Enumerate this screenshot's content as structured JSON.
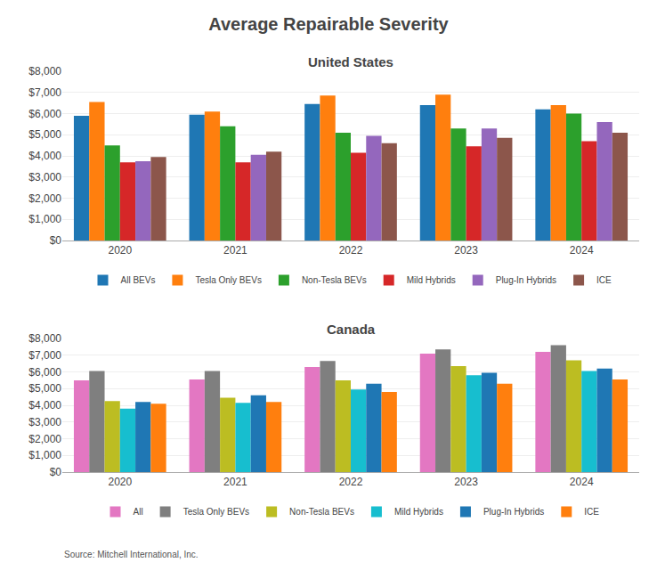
{
  "title": "Average Repairable Severity",
  "annotations": [
    "Source: Mitchell International, Inc."
  ],
  "chart_data": [
    {
      "type": "bar",
      "title": "United States",
      "categories": [
        "2020",
        "2021",
        "2022",
        "2023",
        "2024"
      ],
      "series": [
        {
          "name": "All BEVs",
          "values": [
            5900,
            5950,
            6450,
            6400,
            6200
          ]
        },
        {
          "name": "Tesla Only BEVs",
          "values": [
            6550,
            6100,
            6850,
            6900,
            6400
          ]
        },
        {
          "name": "Non-Tesla BEVs",
          "values": [
            4500,
            5400,
            5100,
            5300,
            6000
          ]
        },
        {
          "name": "Mild Hybrids",
          "values": [
            3700,
            3700,
            4150,
            4450,
            4700
          ]
        },
        {
          "name": "Plug-In Hybrids",
          "values": [
            3750,
            4050,
            4950,
            5300,
            5600
          ]
        },
        {
          "name": "ICE",
          "values": [
            3950,
            4200,
            4600,
            4850,
            5100
          ]
        }
      ],
      "ylim": [
        0,
        8000
      ],
      "yticks": [
        {
          "value": 0,
          "label": "$0"
        },
        {
          "value": 1000,
          "label": "$1,000"
        },
        {
          "value": 2000,
          "label": "$2,000"
        },
        {
          "value": 3000,
          "label": "$3,000"
        },
        {
          "value": 4000,
          "label": "$4,000"
        },
        {
          "value": 5000,
          "label": "$5,000"
        },
        {
          "value": 6000,
          "label": "$6,000"
        },
        {
          "value": 7000,
          "label": "$7,000"
        },
        {
          "value": 8000,
          "label": "$8,000"
        }
      ],
      "grid": true,
      "legend": "bottom"
    },
    {
      "type": "bar",
      "title": "Canada",
      "categories": [
        "2020",
        "2021",
        "2022",
        "2023",
        "2024"
      ],
      "series": [
        {
          "name": "All",
          "values": [
            5500,
            5550,
            6300,
            7100,
            7200
          ]
        },
        {
          "name": "Tesla Only BEVs",
          "values": [
            6050,
            6050,
            6650,
            7350,
            7600
          ]
        },
        {
          "name": "Non-Tesla BEVs",
          "values": [
            4250,
            4450,
            5500,
            6350,
            6700
          ]
        },
        {
          "name": "Mild Hybrids",
          "values": [
            3800,
            4150,
            4950,
            5800,
            6050
          ]
        },
        {
          "name": "Plug-In Hybrids",
          "values": [
            4200,
            4600,
            5300,
            5950,
            6200
          ]
        },
        {
          "name": "ICE",
          "values": [
            4100,
            4200,
            4800,
            5300,
            5550
          ]
        }
      ],
      "ylim": [
        0,
        8000
      ],
      "yticks": [
        {
          "value": 0,
          "label": "$0"
        },
        {
          "value": 1000,
          "label": "$1,000"
        },
        {
          "value": 2000,
          "label": "$2,000"
        },
        {
          "value": 3000,
          "label": "$3,000"
        },
        {
          "value": 4000,
          "label": "$4,000"
        },
        {
          "value": 5000,
          "label": "$5,000"
        },
        {
          "value": 6000,
          "label": "$6,000"
        },
        {
          "value": 7000,
          "label": "$7,000"
        },
        {
          "value": 8000,
          "label": "$8,000"
        }
      ],
      "grid": true,
      "legend": "bottom"
    }
  ]
}
